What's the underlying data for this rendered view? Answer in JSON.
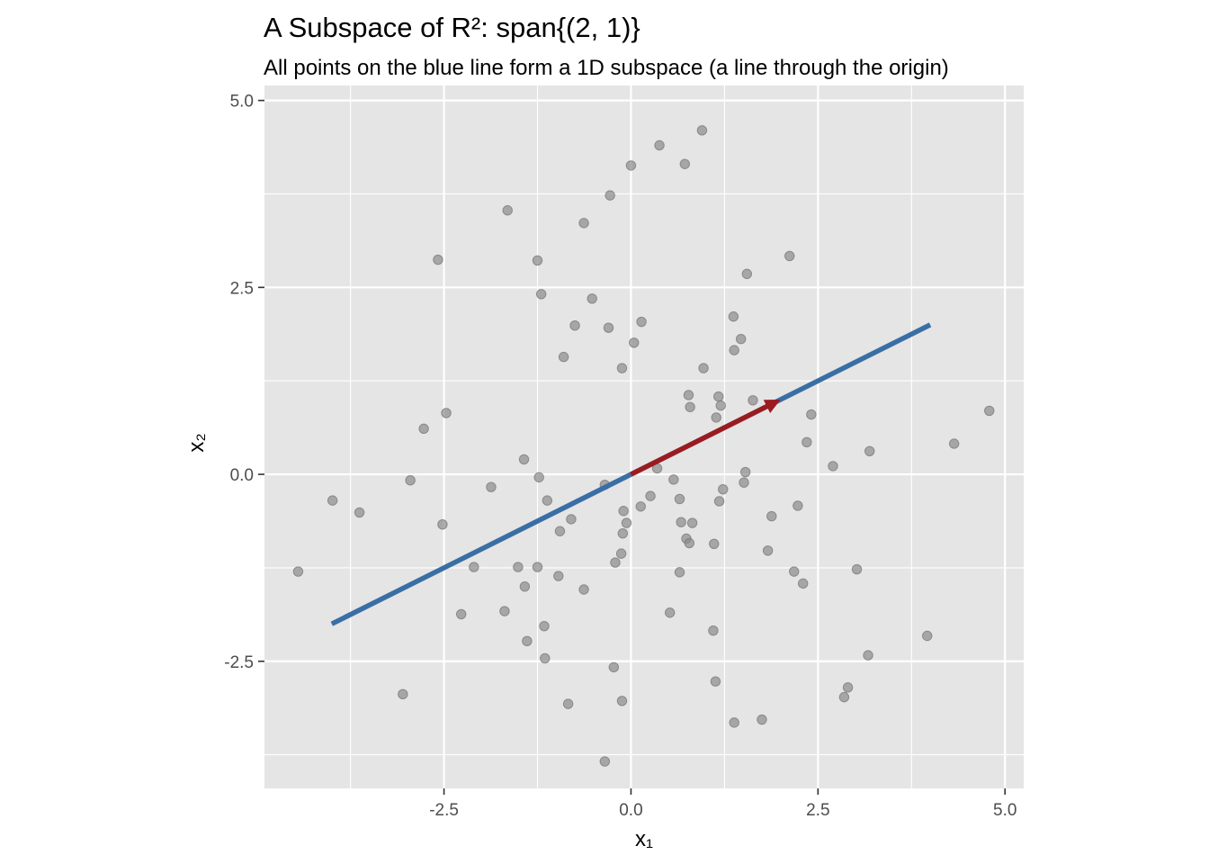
{
  "chart_data": {
    "type": "scatter",
    "title": "A Subspace of R²: span{(2, 1)}",
    "subtitle": "All points on the blue line form a 1D subspace (a line through the origin)",
    "xlabel": "x₁",
    "ylabel": "x₂",
    "xlim": [
      -4.9,
      5.25
    ],
    "ylim": [
      -4.2,
      5.2
    ],
    "x_ticks": [
      -2.5,
      0.0,
      2.5,
      5.0
    ],
    "y_ticks": [
      -2.5,
      0.0,
      2.5,
      5.0
    ],
    "x_tick_labels": [
      "-2.5",
      "0.0",
      "2.5",
      "5.0"
    ],
    "y_tick_labels": [
      "-2.5",
      "0.0",
      "2.5",
      "5.0"
    ],
    "grid": true,
    "colors": {
      "panel_background": "#e5e5e5",
      "grid": "#ffffff",
      "points": "#8c8c8c",
      "span_line": "#3a6ea5",
      "basis_vector": "#9b1b20"
    },
    "span_line": {
      "from": [
        -4,
        -2
      ],
      "to": [
        4,
        2
      ]
    },
    "basis_vector": {
      "from": [
        0,
        0
      ],
      "to": [
        2,
        1
      ]
    },
    "points": [
      [
        0.95,
        4.6
      ],
      [
        0.38,
        4.4
      ],
      [
        0.0,
        4.13
      ],
      [
        0.72,
        4.15
      ],
      [
        -0.28,
        3.73
      ],
      [
        -1.65,
        3.53
      ],
      [
        -0.63,
        3.36
      ],
      [
        -2.58,
        2.87
      ],
      [
        -1.25,
        2.86
      ],
      [
        2.12,
        2.92
      ],
      [
        1.55,
        2.68
      ],
      [
        -1.2,
        2.41
      ],
      [
        -0.52,
        2.35
      ],
      [
        -0.75,
        1.99
      ],
      [
        -0.3,
        1.96
      ],
      [
        0.14,
        2.04
      ],
      [
        1.37,
        2.11
      ],
      [
        1.47,
        1.81
      ],
      [
        1.38,
        1.66
      ],
      [
        0.04,
        1.76
      ],
      [
        -0.9,
        1.57
      ],
      [
        -0.12,
        1.42
      ],
      [
        0.97,
        1.42
      ],
      [
        0.77,
        1.06
      ],
      [
        1.17,
        1.04
      ],
      [
        1.63,
        0.99
      ],
      [
        0.79,
        0.9
      ],
      [
        1.2,
        0.92
      ],
      [
        1.14,
        0.76
      ],
      [
        2.41,
        0.8
      ],
      [
        -2.47,
        0.82
      ],
      [
        -2.77,
        0.61
      ],
      [
        2.35,
        0.43
      ],
      [
        -1.43,
        0.2
      ],
      [
        3.19,
        0.31
      ],
      [
        4.32,
        0.41
      ],
      [
        4.79,
        0.85
      ],
      [
        2.7,
        0.11
      ],
      [
        0.35,
        0.08
      ],
      [
        1.53,
        0.03
      ],
      [
        -1.23,
        -0.04
      ],
      [
        -2.95,
        -0.08
      ],
      [
        0.57,
        -0.07
      ],
      [
        -0.35,
        -0.14
      ],
      [
        1.51,
        -0.11
      ],
      [
        -1.87,
        -0.17
      ],
      [
        1.23,
        -0.2
      ],
      [
        0.26,
        -0.29
      ],
      [
        0.65,
        -0.33
      ],
      [
        -3.99,
        -0.35
      ],
      [
        -1.12,
        -0.35
      ],
      [
        1.18,
        -0.36
      ],
      [
        2.23,
        -0.42
      ],
      [
        0.13,
        -0.43
      ],
      [
        -3.63,
        -0.51
      ],
      [
        -0.1,
        -0.49
      ],
      [
        -0.8,
        -0.6
      ],
      [
        1.88,
        -0.56
      ],
      [
        -0.06,
        -0.65
      ],
      [
        0.67,
        -0.64
      ],
      [
        0.82,
        -0.65
      ],
      [
        -2.52,
        -0.67
      ],
      [
        -0.95,
        -0.76
      ],
      [
        -0.11,
        -0.79
      ],
      [
        0.74,
        -0.86
      ],
      [
        0.78,
        -0.92
      ],
      [
        1.11,
        -0.93
      ],
      [
        1.83,
        -1.02
      ],
      [
        -0.13,
        -1.06
      ],
      [
        -0.21,
        -1.18
      ],
      [
        -4.45,
        -1.3
      ],
      [
        -2.1,
        -1.24
      ],
      [
        -1.51,
        -1.24
      ],
      [
        -1.25,
        -1.24
      ],
      [
        3.02,
        -1.27
      ],
      [
        -0.97,
        -1.36
      ],
      [
        2.18,
        -1.3
      ],
      [
        0.65,
        -1.31
      ],
      [
        2.3,
        -1.46
      ],
      [
        -1.42,
        -1.5
      ],
      [
        -0.63,
        -1.54
      ],
      [
        -2.27,
        -1.87
      ],
      [
        -1.69,
        -1.83
      ],
      [
        0.52,
        -1.85
      ],
      [
        -1.16,
        -2.03
      ],
      [
        1.1,
        -2.09
      ],
      [
        3.96,
        -2.16
      ],
      [
        -1.39,
        -2.23
      ],
      [
        3.17,
        -2.42
      ],
      [
        -1.15,
        -2.46
      ],
      [
        -0.23,
        -2.58
      ],
      [
        1.13,
        -2.77
      ],
      [
        2.9,
        -2.85
      ],
      [
        -3.05,
        -2.94
      ],
      [
        2.85,
        -2.98
      ],
      [
        -0.12,
        -3.03
      ],
      [
        -0.84,
        -3.07
      ],
      [
        1.75,
        -3.28
      ],
      [
        1.38,
        -3.32
      ],
      [
        -0.35,
        -3.84
      ]
    ]
  }
}
